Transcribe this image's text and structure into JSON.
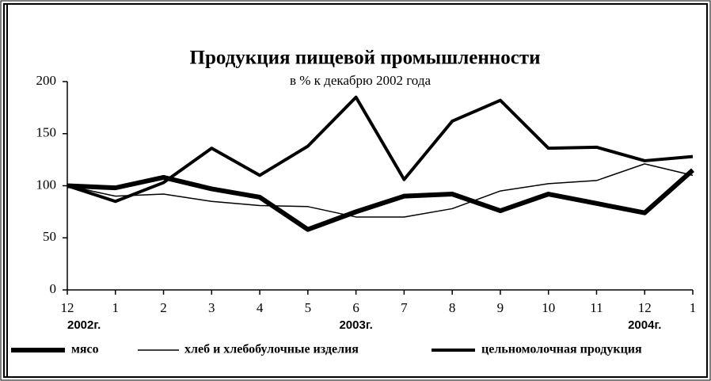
{
  "chart_data": {
    "type": "line",
    "title": "Продукция пищевой промышленности",
    "subtitle": "в % к декабрю 2002 года",
    "categories": [
      "12",
      "1",
      "2",
      "3",
      "4",
      "5",
      "6",
      "7",
      "8",
      "9",
      "10",
      "11",
      "12",
      "1"
    ],
    "year_labels": [
      "2002г.",
      null,
      null,
      null,
      null,
      null,
      "2003г.",
      null,
      null,
      null,
      null,
      null,
      "2004г.",
      null
    ],
    "series": [
      {
        "name": "мясо",
        "color": "#000000",
        "line_width": 6,
        "values": [
          100,
          98,
          108,
          97,
          89,
          58,
          75,
          90,
          92,
          76,
          92,
          83,
          74,
          115
        ]
      },
      {
        "name": "хлеб и хлебобулочные изделия",
        "color": "#000000",
        "line_width": 1.5,
        "values": [
          100,
          90,
          92,
          85,
          81,
          80,
          70,
          70,
          78,
          95,
          102,
          105,
          121,
          110
        ]
      },
      {
        "name": "цельномолочная продукция",
        "color": "#000000",
        "line_width": 4,
        "values": [
          100,
          85,
          103,
          136,
          110,
          138,
          185,
          106,
          162,
          182,
          136,
          137,
          124,
          128
        ]
      }
    ],
    "ylim": [
      0,
      200
    ],
    "yticks": [
      0,
      50,
      100,
      150,
      200
    ],
    "grid": false,
    "legend": "bottom"
  }
}
